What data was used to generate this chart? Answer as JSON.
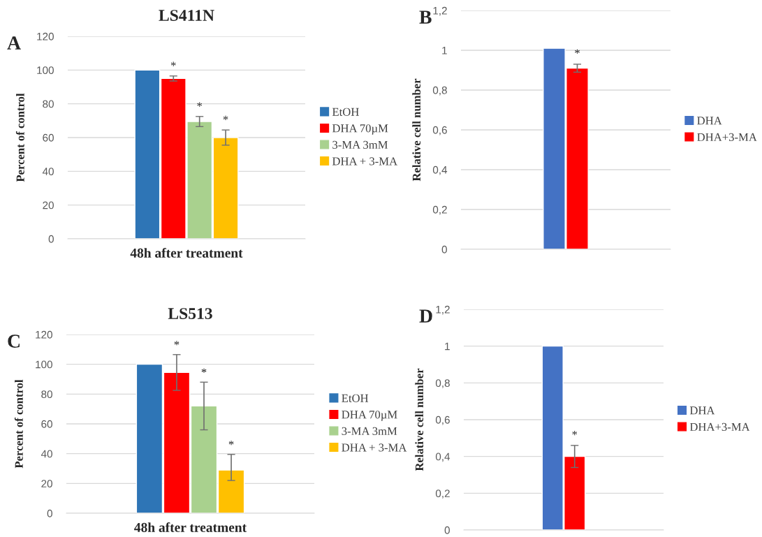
{
  "chart_data": [
    {
      "type": "bar",
      "title": "LS411N",
      "xlabel": "48h after treatment",
      "ylabel": "Percent of control",
      "annotations": [
        "A"
      ],
      "categories": [
        null
      ],
      "series": [
        {
          "name": "EtOH",
          "color": "#2e75b6",
          "values": [
            100
          ]
        },
        {
          "name": "DHA 70µM",
          "color": "#ff0000",
          "values": [
            95
          ],
          "errors": [
            1.5
          ],
          "value_labels": [
            "*"
          ]
        },
        {
          "name": "3-MA 3mM",
          "color": "#a9d18e",
          "values": [
            69.5
          ],
          "errors": [
            3
          ],
          "value_labels": [
            "*"
          ]
        },
        {
          "name": "DHA + 3-MA",
          "color": "#ffc000",
          "values": [
            60
          ],
          "errors": [
            4.5
          ],
          "value_labels": [
            "*"
          ]
        }
      ],
      "ylim": [
        0,
        120
      ],
      "yticks": [
        0,
        20,
        40,
        60,
        80,
        100,
        120
      ],
      "grid": "y",
      "legend": "right"
    },
    {
      "type": "bar",
      "ylabel": "Relative cell number",
      "annotations": [
        "B"
      ],
      "categories": [
        null
      ],
      "series": [
        {
          "name": "DHA",
          "color": "#4472c4",
          "values": [
            1.01
          ]
        },
        {
          "name": "DHA+3-MA",
          "color": "#ff0000",
          "values": [
            0.91
          ],
          "errors": [
            0.02
          ],
          "value_labels": [
            "*"
          ]
        }
      ],
      "ylim": [
        0,
        1.2
      ],
      "yticks": [
        {
          "value": 0,
          "label": "0"
        },
        {
          "value": 0.2,
          "label": "0,2"
        },
        {
          "value": 0.4,
          "label": "0,4"
        },
        {
          "value": 0.6,
          "label": "0,6"
        },
        {
          "value": 0.8,
          "label": "0,8"
        },
        {
          "value": 1,
          "label": "1"
        },
        {
          "value": 1.2,
          "label": "1,2"
        }
      ],
      "grid": "y",
      "legend": "right"
    },
    {
      "type": "bar",
      "title": "LS513",
      "xlabel": "48h after treatment",
      "ylabel": "Percent of control",
      "annotations": [
        "C"
      ],
      "categories": [
        null
      ],
      "series": [
        {
          "name": "EtOH",
          "color": "#2e75b6",
          "values": [
            100
          ]
        },
        {
          "name": "DHA 70µM",
          "color": "#ff0000",
          "values": [
            94.5
          ],
          "errors": [
            12
          ],
          "value_labels": [
            "*"
          ]
        },
        {
          "name": "3-MA 3mM",
          "color": "#a9d18e",
          "values": [
            72
          ],
          "errors": [
            16
          ],
          "value_labels": [
            "*"
          ]
        },
        {
          "name": "DHA + 3-MA",
          "color": "#ffc000",
          "values": [
            29
          ],
          "errors": [
            [
              22,
              39.5
            ]
          ],
          "value_labels": [
            "*"
          ]
        }
      ],
      "ylim": [
        0,
        120
      ],
      "yticks": [
        0,
        20,
        40,
        60,
        80,
        100,
        120
      ],
      "grid": "y",
      "legend": "right"
    },
    {
      "type": "bar",
      "ylabel": "Relative cell number",
      "annotations": [
        "D"
      ],
      "categories": [
        null
      ],
      "series": [
        {
          "name": "DHA",
          "color": "#4472c4",
          "values": [
            1
          ]
        },
        {
          "name": "DHA+3-MA",
          "color": "#ff0000",
          "values": [
            0.4
          ],
          "errors": [
            0.06
          ],
          "value_labels": [
            "*"
          ]
        }
      ],
      "ylim": [
        0,
        1.2
      ],
      "yticks": [
        {
          "value": 0,
          "label": "0"
        },
        {
          "value": 0.2,
          "label": "0,2"
        },
        {
          "value": 0.4,
          "label": "0,4"
        },
        {
          "value": 0.6,
          "label": "0,6"
        },
        {
          "value": 0.8,
          "label": "0,8"
        },
        {
          "value": 1,
          "label": "1"
        },
        {
          "value": 1.2,
          "label": "1,2"
        }
      ],
      "grid": "y",
      "legend": "right"
    }
  ]
}
